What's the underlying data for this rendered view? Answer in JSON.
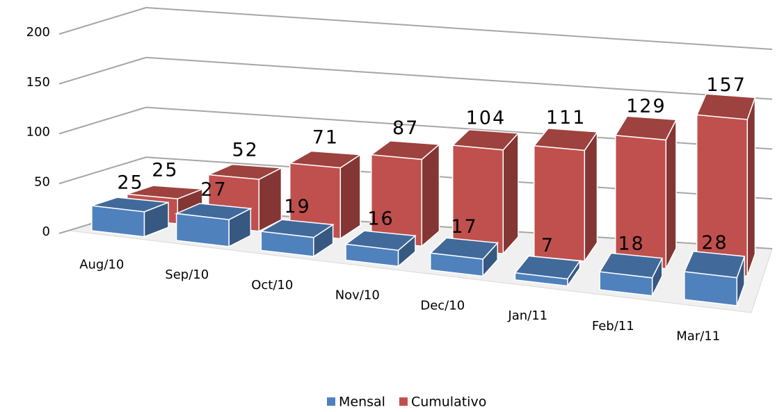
{
  "chart_data": {
    "type": "bar3d",
    "categories": [
      "Aug/10",
      "Sep/10",
      "Oct/10",
      "Nov/10",
      "Dec/10",
      "Jan/11",
      "Feb/11",
      "Mar/11"
    ],
    "series": [
      {
        "name": "Mensal",
        "color": "#4f81bd",
        "values": [
          25,
          27,
          19,
          16,
          17,
          7,
          18,
          28
        ]
      },
      {
        "name": "Cumulativo",
        "color": "#c0504d",
        "values": [
          25,
          52,
          71,
          87,
          104,
          111,
          129,
          157
        ]
      }
    ],
    "ylim": [
      0,
      200
    ],
    "yticks": [
      0,
      50,
      100,
      150,
      200
    ],
    "grid": true,
    "legend": "bottom"
  }
}
